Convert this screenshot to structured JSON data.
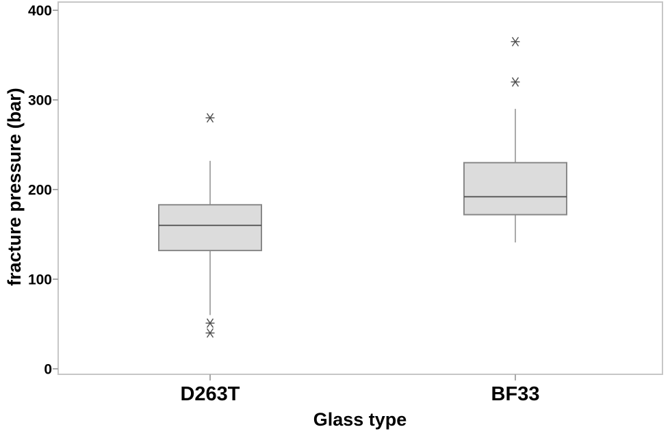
{
  "chart_data": {
    "type": "boxplot",
    "title": "",
    "xlabel": "Glass type",
    "ylabel": "fracture pressure (bar)",
    "ylim": [
      0,
      400
    ],
    "yticks": [
      0,
      100,
      200,
      300,
      400
    ],
    "ytick_labels": [
      "0",
      "100",
      "200",
      "300",
      "400"
    ],
    "categories": [
      "D263T",
      "BF33"
    ],
    "series": [
      {
        "name": "D263T",
        "whisker_low": 60,
        "q1": 132,
        "median": 160,
        "q3": 183,
        "whisker_high": 232,
        "outliers": [
          280,
          51,
          40
        ]
      },
      {
        "name": "BF33",
        "whisker_low": 141,
        "q1": 172,
        "median": 192,
        "q3": 230,
        "whisker_high": 290,
        "outliers": [
          365,
          320
        ]
      }
    ],
    "outlier_marker": "asterisk",
    "grid": "off",
    "legend": "none",
    "colors": {
      "background": "#ffffff",
      "frame": "#c6c6c6",
      "tick": "#a8a8a8",
      "box_fill": "#dcdcdc",
      "box_border": "#888888",
      "median": "#4a4a4a",
      "whisker": "#8c8c8c",
      "outlier": "#4d4d4d",
      "text": "#000000"
    }
  }
}
